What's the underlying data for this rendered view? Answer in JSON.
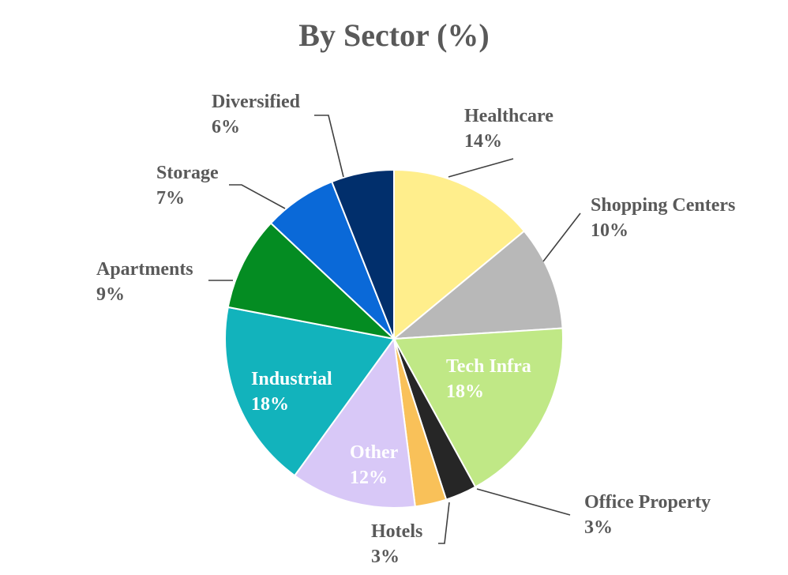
{
  "chart_data": {
    "type": "pie",
    "title": "By Sector (%)",
    "start_angle_deg": 0,
    "direction": "clockwise",
    "slices": [
      {
        "name": "Healthcare",
        "value": 14,
        "value_label": "14%",
        "color": "#FFEE8C"
      },
      {
        "name": "Shopping Centers",
        "value": 10,
        "value_label": "10%",
        "color": "#B8B8B8"
      },
      {
        "name": "Tech Infra",
        "value": 18,
        "value_label": "18%",
        "color": "#C0E886"
      },
      {
        "name": "Office Property",
        "value": 3,
        "value_label": "3%",
        "color": "#262626"
      },
      {
        "name": "Hotels",
        "value": 3,
        "value_label": "3%",
        "color": "#F9C159"
      },
      {
        "name": "Other",
        "value": 12,
        "value_label": "12%",
        "color": "#D8C8F7"
      },
      {
        "name": "Industrial",
        "value": 18,
        "value_label": "18%",
        "color": "#12B3BC"
      },
      {
        "name": "Apartments",
        "value": 9,
        "value_label": "9%",
        "color": "#048C22"
      },
      {
        "name": "Storage",
        "value": 7,
        "value_label": "7%",
        "color": "#0A69D8"
      },
      {
        "name": "Diversified",
        "value": 6,
        "value_label": "6%",
        "color": "#012F6C"
      }
    ]
  }
}
